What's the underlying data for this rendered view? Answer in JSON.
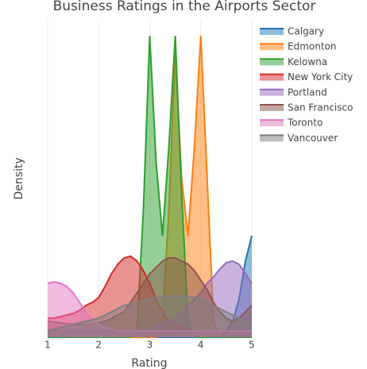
{
  "chart_data": {
    "type": "density",
    "title": "Business Ratings in the Airports Sector",
    "x_label": "Rating",
    "y_label": "Density",
    "x": [
      1,
      1.125,
      1.25,
      1.375,
      1.5,
      1.625,
      1.75,
      1.875,
      2,
      2.125,
      2.25,
      2.375,
      2.5,
      2.625,
      2.75,
      2.875,
      3,
      3.125,
      3.25,
      3.375,
      3.5,
      3.625,
      3.75,
      3.875,
      4,
      4.125,
      4.25,
      4.375,
      4.5,
      4.625,
      4.75,
      4.875,
      5
    ],
    "xlim": [
      1,
      5
    ],
    "xticks": [
      1,
      2,
      3,
      4,
      5
    ],
    "ylim": [
      0,
      1
    ],
    "grid": true,
    "legend": "top-right",
    "series": [
      {
        "name": "Calgary",
        "color": "#1f77b4",
        "values": [
          0,
          0,
          0,
          0,
          0,
          0,
          0,
          0,
          0,
          0,
          0,
          0,
          0,
          0,
          0,
          0,
          0,
          0,
          0,
          0,
          0,
          0,
          0,
          0,
          0,
          0,
          0,
          0,
          0.02,
          0.05,
          0.12,
          0.24,
          0.32
        ]
      },
      {
        "name": "Edmonton",
        "color": "#ff7f0e",
        "values": [
          0,
          0,
          0,
          0,
          0,
          0,
          0,
          0,
          0,
          0,
          0,
          0,
          0,
          0,
          0,
          0,
          0,
          0,
          0.05,
          0.4,
          0.9,
          0.5,
          0.32,
          0.6,
          0.95,
          0.5,
          0.05,
          0,
          0,
          0,
          0,
          0,
          0
        ]
      },
      {
        "name": "Kelowna",
        "color": "#2ca02c",
        "values": [
          0,
          0,
          0,
          0,
          0,
          0,
          0,
          0,
          0,
          0,
          0,
          0,
          0,
          0,
          0.02,
          0.4,
          0.95,
          0.55,
          0.32,
          0.6,
          0.95,
          0.45,
          0.05,
          0,
          0,
          0,
          0,
          0,
          0,
          0,
          0,
          0,
          0
        ]
      },
      {
        "name": "New York City",
        "color": "#d62728",
        "values": [
          0.06,
          0.06,
          0.065,
          0.07,
          0.075,
          0.085,
          0.1,
          0.11,
          0.125,
          0.16,
          0.2,
          0.23,
          0.25,
          0.255,
          0.24,
          0.21,
          0.17,
          0.12,
          0.08,
          0.05,
          0.04,
          0.03,
          0.025,
          0.02,
          0.02,
          0.02,
          0.02,
          0.02,
          0.02,
          0.02,
          0.02,
          0.02,
          0.02
        ]
      },
      {
        "name": "Portland",
        "color": "#9467bd",
        "values": [
          0.02,
          0.02,
          0.02,
          0.02,
          0.02,
          0.02,
          0.02,
          0.02,
          0.02,
          0.02,
          0.02,
          0.02,
          0.02,
          0.02,
          0.02,
          0.02,
          0.03,
          0.035,
          0.04,
          0.05,
          0.06,
          0.08,
          0.1,
          0.12,
          0.14,
          0.17,
          0.19,
          0.215,
          0.235,
          0.24,
          0.23,
          0.2,
          0.17
        ]
      },
      {
        "name": "San Francisco",
        "color": "#8c564b",
        "values": [
          0.05,
          0.048,
          0.045,
          0.043,
          0.04,
          0.04,
          0.04,
          0.042,
          0.045,
          0.05,
          0.06,
          0.07,
          0.08,
          0.11,
          0.14,
          0.17,
          0.2,
          0.22,
          0.24,
          0.25,
          0.25,
          0.24,
          0.23,
          0.21,
          0.18,
          0.15,
          0.11,
          0.08,
          0.06,
          0.05,
          0.06,
          0.08,
          0.1
        ]
      },
      {
        "name": "Toronto",
        "color": "#e377c2",
        "values": [
          0.17,
          0.175,
          0.17,
          0.16,
          0.14,
          0.11,
          0.08,
          0.055,
          0.04,
          0.03,
          0.025,
          0.02,
          0.02,
          0.02,
          0.02,
          0.02,
          0.02,
          0.02,
          0.02,
          0.02,
          0.02,
          0.02,
          0.02,
          0.02,
          0.02,
          0.02,
          0.02,
          0.02,
          0.02,
          0.02,
          0.02,
          0.02,
          0.02
        ]
      },
      {
        "name": "Vancouver",
        "color": "#7f7f7f",
        "values": [
          0.02,
          0.025,
          0.03,
          0.035,
          0.04,
          0.045,
          0.05,
          0.055,
          0.06,
          0.07,
          0.08,
          0.09,
          0.1,
          0.105,
          0.11,
          0.115,
          0.12,
          0.125,
          0.128,
          0.13,
          0.13,
          0.13,
          0.128,
          0.125,
          0.12,
          0.11,
          0.1,
          0.09,
          0.08,
          0.07,
          0.06,
          0.05,
          0.04
        ]
      }
    ]
  }
}
